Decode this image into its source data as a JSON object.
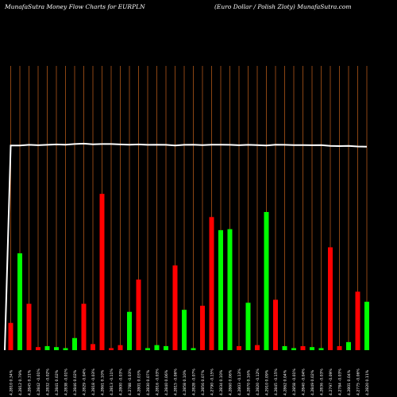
{
  "header": {
    "left_title": "MunafaSutra  Money Flow  Charts for EURPLN",
    "right_title": "(Euro  Dollar / Polish Zloty) MunafaSutra.com"
  },
  "colors": {
    "background": "#000000",
    "grid": "#8B4513",
    "up": "#00FF00",
    "down": "#FF0000",
    "line": "#FFFFFF"
  },
  "chart_data": {
    "type": "bar",
    "title": "MunafaSutra  Money Flow  Charts for EURPLN",
    "subtitle": "(Euro  Dollar / Polish Zloty) MunafaSutra.com",
    "ylim": [
      0,
      100
    ],
    "bars": [
      {
        "dir": "down",
        "value": 13.5
      },
      {
        "dir": "up",
        "value": 48
      },
      {
        "dir": "down",
        "value": 23
      },
      {
        "dir": "down",
        "value": 1.5
      },
      {
        "dir": "up",
        "value": 2
      },
      {
        "dir": "up",
        "value": 1.5
      },
      {
        "dir": "up",
        "value": 1
      },
      {
        "dir": "up",
        "value": 6
      },
      {
        "dir": "down",
        "value": 23
      },
      {
        "dir": "down",
        "value": 3
      },
      {
        "dir": "down",
        "value": 77.5
      },
      {
        "dir": "down",
        "value": 1
      },
      {
        "dir": "down",
        "value": 2.5
      },
      {
        "dir": "up",
        "value": 19
      },
      {
        "dir": "down",
        "value": 35
      },
      {
        "dir": "up",
        "value": 1
      },
      {
        "dir": "up",
        "value": 2.5
      },
      {
        "dir": "up",
        "value": 2
      },
      {
        "dir": "down",
        "value": 42
      },
      {
        "dir": "up",
        "value": 20
      },
      {
        "dir": "up",
        "value": 1
      },
      {
        "dir": "down",
        "value": 22
      },
      {
        "dir": "down",
        "value": 66
      },
      {
        "dir": "up",
        "value": 59.5
      },
      {
        "dir": "up",
        "value": 60
      },
      {
        "dir": "down",
        "value": 2
      },
      {
        "dir": "up",
        "value": 23.5
      },
      {
        "dir": "down",
        "value": 2.5
      },
      {
        "dir": "up",
        "value": 68.5
      },
      {
        "dir": "down",
        "value": 25
      },
      {
        "dir": "up",
        "value": 2
      },
      {
        "dir": "up",
        "value": 1
      },
      {
        "dir": "down",
        "value": 2
      },
      {
        "dir": "up",
        "value": 1.5
      },
      {
        "dir": "up",
        "value": 1
      },
      {
        "dir": "down",
        "value": 51
      },
      {
        "dir": "down",
        "value": 2
      },
      {
        "dir": "up",
        "value": 4
      },
      {
        "dir": "down",
        "value": 29
      },
      {
        "dir": "up",
        "value": 24
      }
    ],
    "line": [
      0,
      101.5,
      101.5,
      101.8,
      101.6,
      101.8,
      102,
      101.9,
      102.2,
      102.4,
      102.1,
      102.2,
      102.2,
      102,
      101.9,
      102,
      101.8,
      101.9,
      101.8,
      101.5,
      101.8,
      101.9,
      101.7,
      101.9,
      101.9,
      101.8,
      101.6,
      101.8,
      101.7,
      101.5,
      101.9,
      101.8,
      101.7,
      101.7,
      101.6,
      101.7,
      101.3,
      101.2,
      101.3,
      101,
      100.9
    ],
    "x_labels": [
      "4.2810 0.34%",
      "4.2812 0.79%",
      "4.2845 0.31%",
      "4.2842 -0.01%",
      "4.2832 -0.02%",
      "4.2841 0.02%",
      "4.2838 -0.01%",
      "4.2846 0.02%",
      "4.2829 -0.04%",
      "4.2818 -0.03%",
      "4.2861 0.10%",
      "4.2813 -0.11%",
      "4.2800 -0.03%",
      "4.2788 -0.03%",
      "4.2801 0.03%",
      "4.2830 0.07%",
      "4.2816 -0.03%",
      "4.2840 0.06%",
      "4.2815 -0.06%",
      "4.2858 0.10%",
      "4.2828 -0.07%",
      "4.2856 0.07%",
      "4.2790 -0.15%",
      "4.2834 0.10%",
      "4.2860 0.06%",
      "4.2803 -0.13%",
      "4.2870 0.16%",
      "4.2820 -0.12%",
      "4.2910 0.09%",
      "4.2845 -0.15%",
      "4.2862 0.04%",
      "4.2858 -0.01%",
      "4.2840 -0.04%",
      "4.2849 0.02%",
      "4.2836 -0.03%",
      "4.2797 -0.09%",
      "4.2784 -0.03%",
      "4.2801 0.04%",
      "4.2775 -0.06%",
      "4.2820 0.11%"
    ]
  }
}
